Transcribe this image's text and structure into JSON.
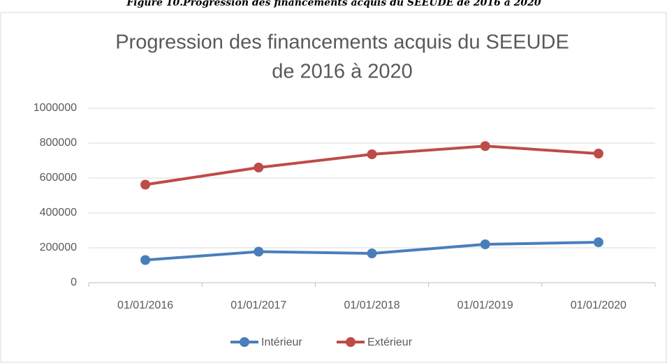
{
  "caption": "Figure 10.Progression des financements acquis du SEEUDE de 2016 à 2020",
  "chart_data": {
    "type": "line",
    "title": [
      "Progression des financements acquis du SEEUDE",
      "de 2016 à 2020"
    ],
    "categories": [
      "01/01/2016",
      "01/01/2017",
      "01/01/2018",
      "01/01/2019",
      "01/01/2020"
    ],
    "series": [
      {
        "name": "Intérieur",
        "color": "#4a7ebb",
        "values": [
          130000,
          178000,
          168000,
          220000,
          232000
        ]
      },
      {
        "name": "Extérieur",
        "color": "#be4b48",
        "values": [
          562000,
          660000,
          736000,
          783000,
          740000
        ]
      }
    ],
    "ylim": [
      0,
      1000000
    ],
    "yticks": [
      0,
      200000,
      400000,
      600000,
      800000,
      1000000
    ],
    "grid": true,
    "legend": "bottom"
  }
}
